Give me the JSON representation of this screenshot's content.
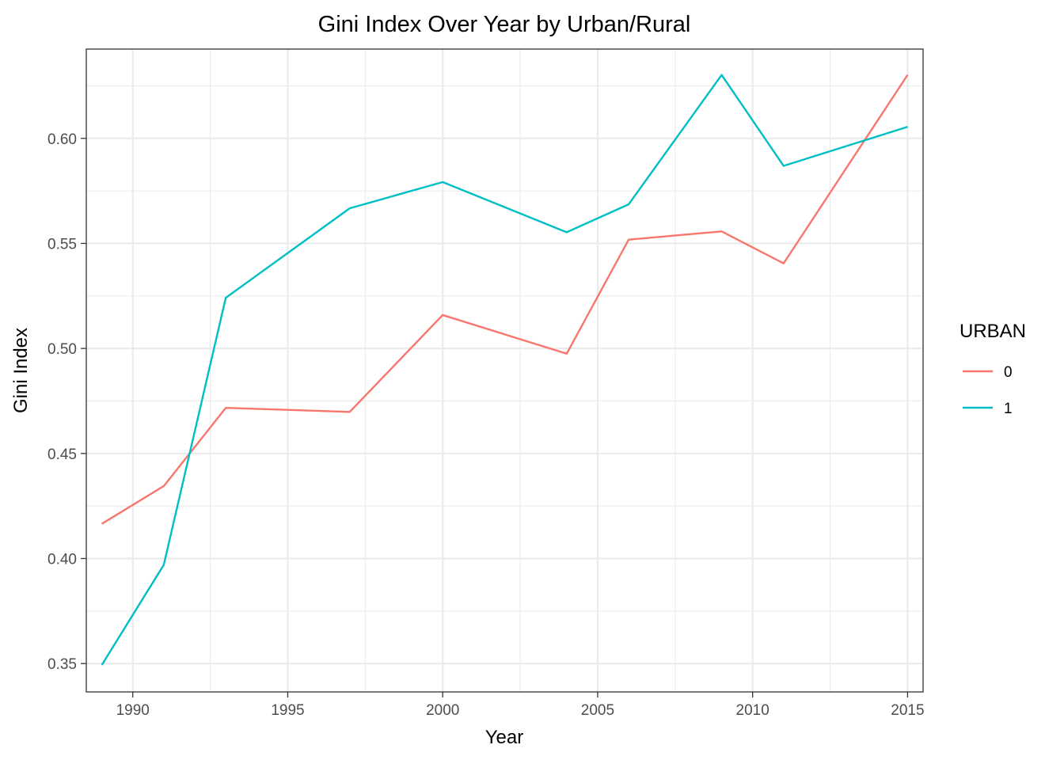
{
  "chart_data": {
    "type": "line",
    "title": "Gini Index Over Year by Urban/Rural",
    "xlabel": "Year",
    "ylabel": "Gini Index",
    "xlim": [
      1988.5,
      2015.5
    ],
    "ylim": [
      0.3365,
      0.6425
    ],
    "x_ticks": [
      1990,
      1995,
      2000,
      2005,
      2010,
      2015
    ],
    "x_tick_labels": [
      "1990",
      "1995",
      "2000",
      "2005",
      "2010",
      "2015"
    ],
    "y_ticks": [
      0.35,
      0.4,
      0.45,
      0.5,
      0.55,
      0.6
    ],
    "y_tick_labels": [
      "0.35",
      "0.40",
      "0.45",
      "0.50",
      "0.55",
      "0.60"
    ],
    "grid": true,
    "legend": {
      "title": "URBAN",
      "position": "right"
    },
    "series": [
      {
        "name": "0",
        "color": "#F8766D",
        "x": [
          1989,
          1991,
          1993,
          1997,
          2000,
          2004,
          2006,
          2009,
          2011,
          2015
        ],
        "y": [
          0.4165,
          0.4345,
          0.4717,
          0.4698,
          0.5159,
          0.4975,
          0.5518,
          0.5557,
          0.5405,
          0.6302
        ]
      },
      {
        "name": "1",
        "color": "#00BFC4",
        "x": [
          1989,
          1991,
          1993,
          1997,
          2000,
          2004,
          2006,
          2009,
          2011,
          2015
        ],
        "y": [
          0.3493,
          0.397,
          0.5241,
          0.5667,
          0.5792,
          0.5553,
          0.5686,
          0.6302,
          0.5869,
          0.6055
        ]
      }
    ]
  }
}
